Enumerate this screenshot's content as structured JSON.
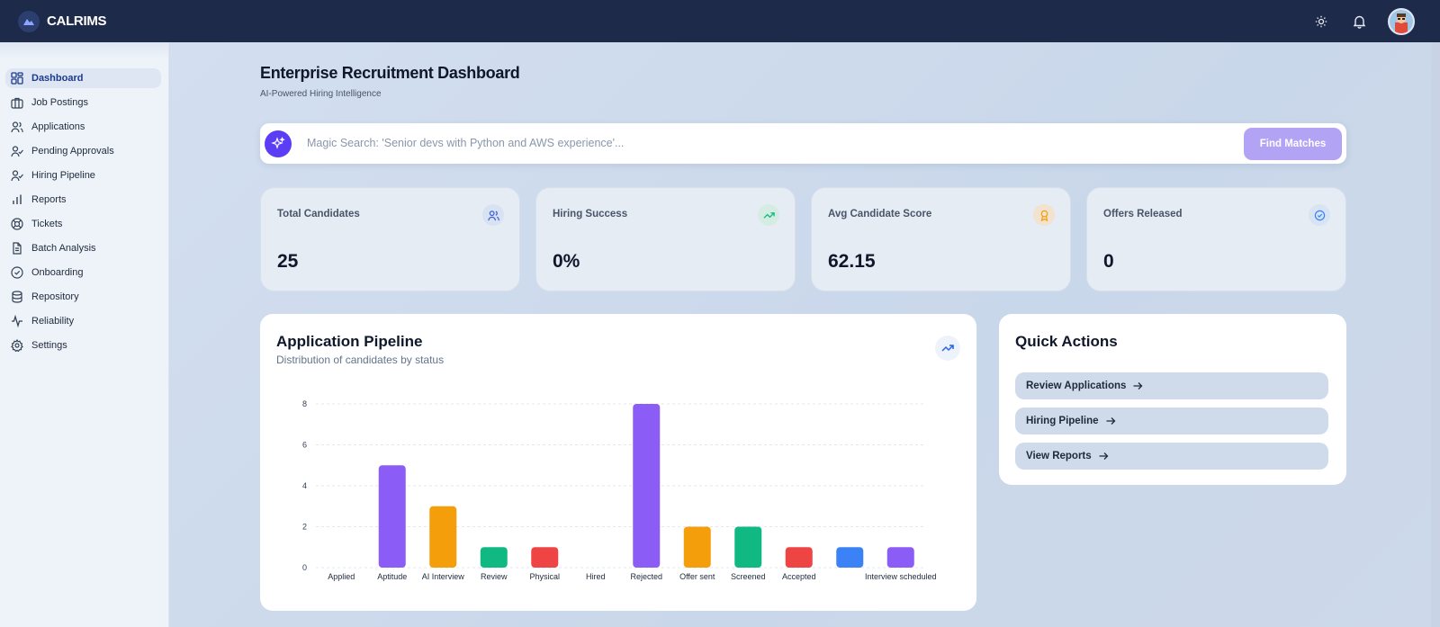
{
  "app": {
    "name": "CALRIMS"
  },
  "sidebar": {
    "items": [
      {
        "label": "Dashboard",
        "icon": "grid-icon",
        "active": true
      },
      {
        "label": "Job Postings",
        "icon": "briefcase-icon"
      },
      {
        "label": "Applications",
        "icon": "users-icon"
      },
      {
        "label": "Pending Approvals",
        "icon": "user-check-icon"
      },
      {
        "label": "Hiring Pipeline",
        "icon": "user-check-icon"
      },
      {
        "label": "Reports",
        "icon": "bar-chart-icon"
      },
      {
        "label": "Tickets",
        "icon": "lifebuoy-icon"
      },
      {
        "label": "Batch Analysis",
        "icon": "file-text-icon"
      },
      {
        "label": "Onboarding",
        "icon": "check-circle-icon"
      },
      {
        "label": "Repository",
        "icon": "database-icon"
      },
      {
        "label": "Reliability",
        "icon": "activity-icon"
      },
      {
        "label": "Settings",
        "icon": "gear-icon"
      }
    ]
  },
  "header": {
    "title": "Enterprise Recruitment Dashboard",
    "subtitle": "AI-Powered Hiring Intelligence"
  },
  "search": {
    "placeholder": "Magic Search: 'Senior devs with Python and AWS experience'...",
    "button_label": "Find Matches"
  },
  "stats": [
    {
      "label": "Total Candidates",
      "value": "25",
      "icon": "users-icon",
      "color": "#3b5bdb",
      "bg": "#d7e2f3"
    },
    {
      "label": "Hiring Success",
      "value": "0%",
      "icon": "trending-up-icon",
      "color": "#10b981",
      "bg": "#d5ece3"
    },
    {
      "label": "Avg Candidate Score",
      "value": "62.15",
      "icon": "award-icon",
      "color": "#f59e0b",
      "bg": "#f1e3cf"
    },
    {
      "label": "Offers Released",
      "value": "0",
      "icon": "check-circle-icon",
      "color": "#3b82f6",
      "bg": "#d8e4f4"
    }
  ],
  "pipeline": {
    "title": "Application Pipeline",
    "subtitle": "Distribution of candidates by status"
  },
  "chart_data": {
    "type": "bar",
    "categories": [
      "Applied",
      "Aptitude",
      "AI Interview",
      "Review",
      "Physical",
      "Hired",
      "Rejected",
      "Offer sent",
      "Screened",
      "Accepted",
      "",
      "Interview scheduled"
    ],
    "values": [
      0,
      5,
      3,
      1,
      1,
      0,
      8,
      2,
      2,
      1,
      1,
      1
    ],
    "colors": [
      "#8b5cf6",
      "#8b5cf6",
      "#f59e0b",
      "#10b981",
      "#ef4444",
      "#3b82f6",
      "#8b5cf6",
      "#f59e0b",
      "#10b981",
      "#ef4444",
      "#3b82f6",
      "#8b5cf6"
    ],
    "yticks": [
      0,
      2,
      4,
      6,
      8
    ],
    "ylim": [
      0,
      8
    ],
    "grid": true,
    "title": "",
    "xlabel": "",
    "ylabel": ""
  },
  "quick_actions": {
    "title": "Quick Actions",
    "items": [
      {
        "label": "Review Applications"
      },
      {
        "label": "Hiring Pipeline"
      },
      {
        "label": "View Reports"
      }
    ]
  }
}
